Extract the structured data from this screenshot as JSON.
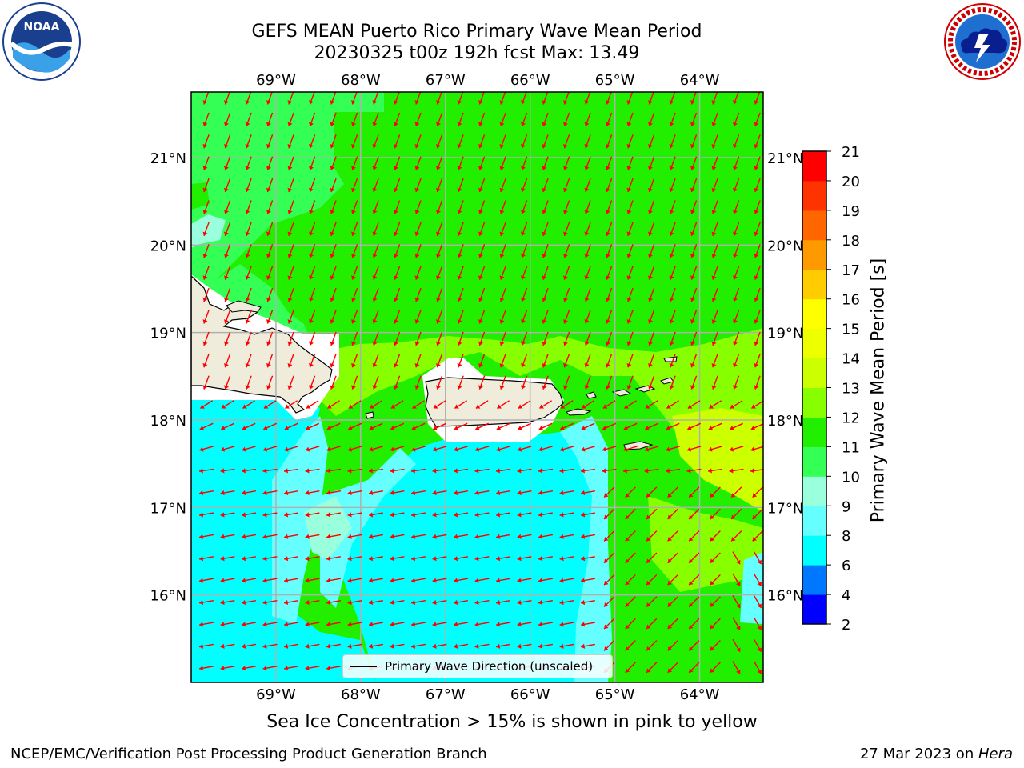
{
  "title": {
    "line1": "GEFS MEAN Puerto Rico Primary Wave Mean Period",
    "line2": "20230325 t00z 192h fcst   Max: 13.49"
  },
  "logos": {
    "left": {
      "text": "NOAA",
      "ring": "NATIONAL OCEANIC AND ATMOSPHERIC ADMINISTRATION · U.S. DEPARTMENT OF COMMERCE",
      "icon": "noaa-logo"
    },
    "right": {
      "ring": "NATIONAL WEATHER SERVICE",
      "icon": "nws-logo"
    }
  },
  "map": {
    "lon_ticks": [
      "69°W",
      "68°W",
      "67°W",
      "66°W",
      "65°W",
      "64°W"
    ],
    "lat_ticks": [
      "21°N",
      "20°N",
      "19°N",
      "18°N",
      "17°N",
      "16°N"
    ],
    "lon_range": [
      -70.0,
      -63.25
    ],
    "lat_range": [
      15.0,
      21.75
    ],
    "legend_label": "Primary Wave Direction (unscaled)",
    "colors": {
      "land": "#efecdc",
      "grid": "#b0b0b0",
      "arrow": "#ff0000"
    }
  },
  "colorbar": {
    "label": "Primary Wave Mean Period [s]",
    "levels": [
      "2",
      "4",
      "6",
      "8",
      "9",
      "10",
      "11",
      "12",
      "13",
      "14",
      "15",
      "16",
      "17",
      "18",
      "19",
      "20",
      "21"
    ],
    "colors": [
      "#0000ff",
      "#0077ff",
      "#00ffff",
      "#66ffff",
      "#99ffdd",
      "#33ff55",
      "#22ee00",
      "#88ff00",
      "#ccff00",
      "#eeff00",
      "#ffff00",
      "#ffcc00",
      "#ff9900",
      "#ff6600",
      "#ff3300",
      "#ff0000"
    ]
  },
  "caption": "Sea Ice Concentration > 15% is shown in pink to yellow",
  "footer": {
    "left": "NCEP/EMC/Verification Post Processing Product Generation Branch",
    "right_date": "27 Mar 2023 on ",
    "right_host": "Hera"
  }
}
